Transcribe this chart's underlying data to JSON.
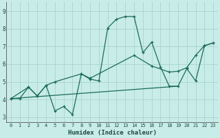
{
  "xlabel": "Humidex (Indice chaleur)",
  "bg_color": "#c8ece8",
  "line_color": "#1a6b5a",
  "grid_color": "#aad4cc",
  "ylim": [
    2.7,
    9.5
  ],
  "xlim": [
    -0.5,
    23.5
  ],
  "yticks": [
    3,
    4,
    5,
    6,
    7,
    8,
    9
  ],
  "xticks": [
    0,
    1,
    2,
    3,
    4,
    5,
    6,
    7,
    8,
    9,
    10,
    11,
    12,
    13,
    14,
    15,
    16,
    17,
    18,
    19,
    20,
    21,
    22,
    23
  ],
  "line1_x": [
    0,
    1,
    2,
    3,
    4,
    5,
    6,
    7,
    8,
    9,
    10,
    11,
    12,
    13,
    14,
    15,
    16,
    17,
    18,
    19,
    20,
    21,
    22,
    23
  ],
  "line1_y": [
    4.05,
    4.05,
    4.7,
    4.2,
    4.8,
    3.35,
    3.6,
    3.15,
    5.45,
    5.15,
    5.05,
    8.05,
    8.55,
    8.7,
    8.7,
    6.65,
    7.25,
    5.85,
    4.75,
    4.75,
    5.75,
    5.05,
    7.05,
    7.2
  ],
  "line2_x": [
    0,
    2,
    3,
    4,
    5,
    8,
    9,
    14,
    16,
    18,
    19,
    20,
    21,
    22,
    23
  ],
  "line2_y": [
    4.05,
    4.7,
    4.2,
    4.8,
    5.0,
    5.45,
    5.2,
    6.5,
    5.9,
    5.55,
    5.6,
    5.8,
    6.5,
    7.05,
    7.2
  ],
  "line3_x": [
    0,
    19
  ],
  "line3_y": [
    4.05,
    4.75
  ]
}
